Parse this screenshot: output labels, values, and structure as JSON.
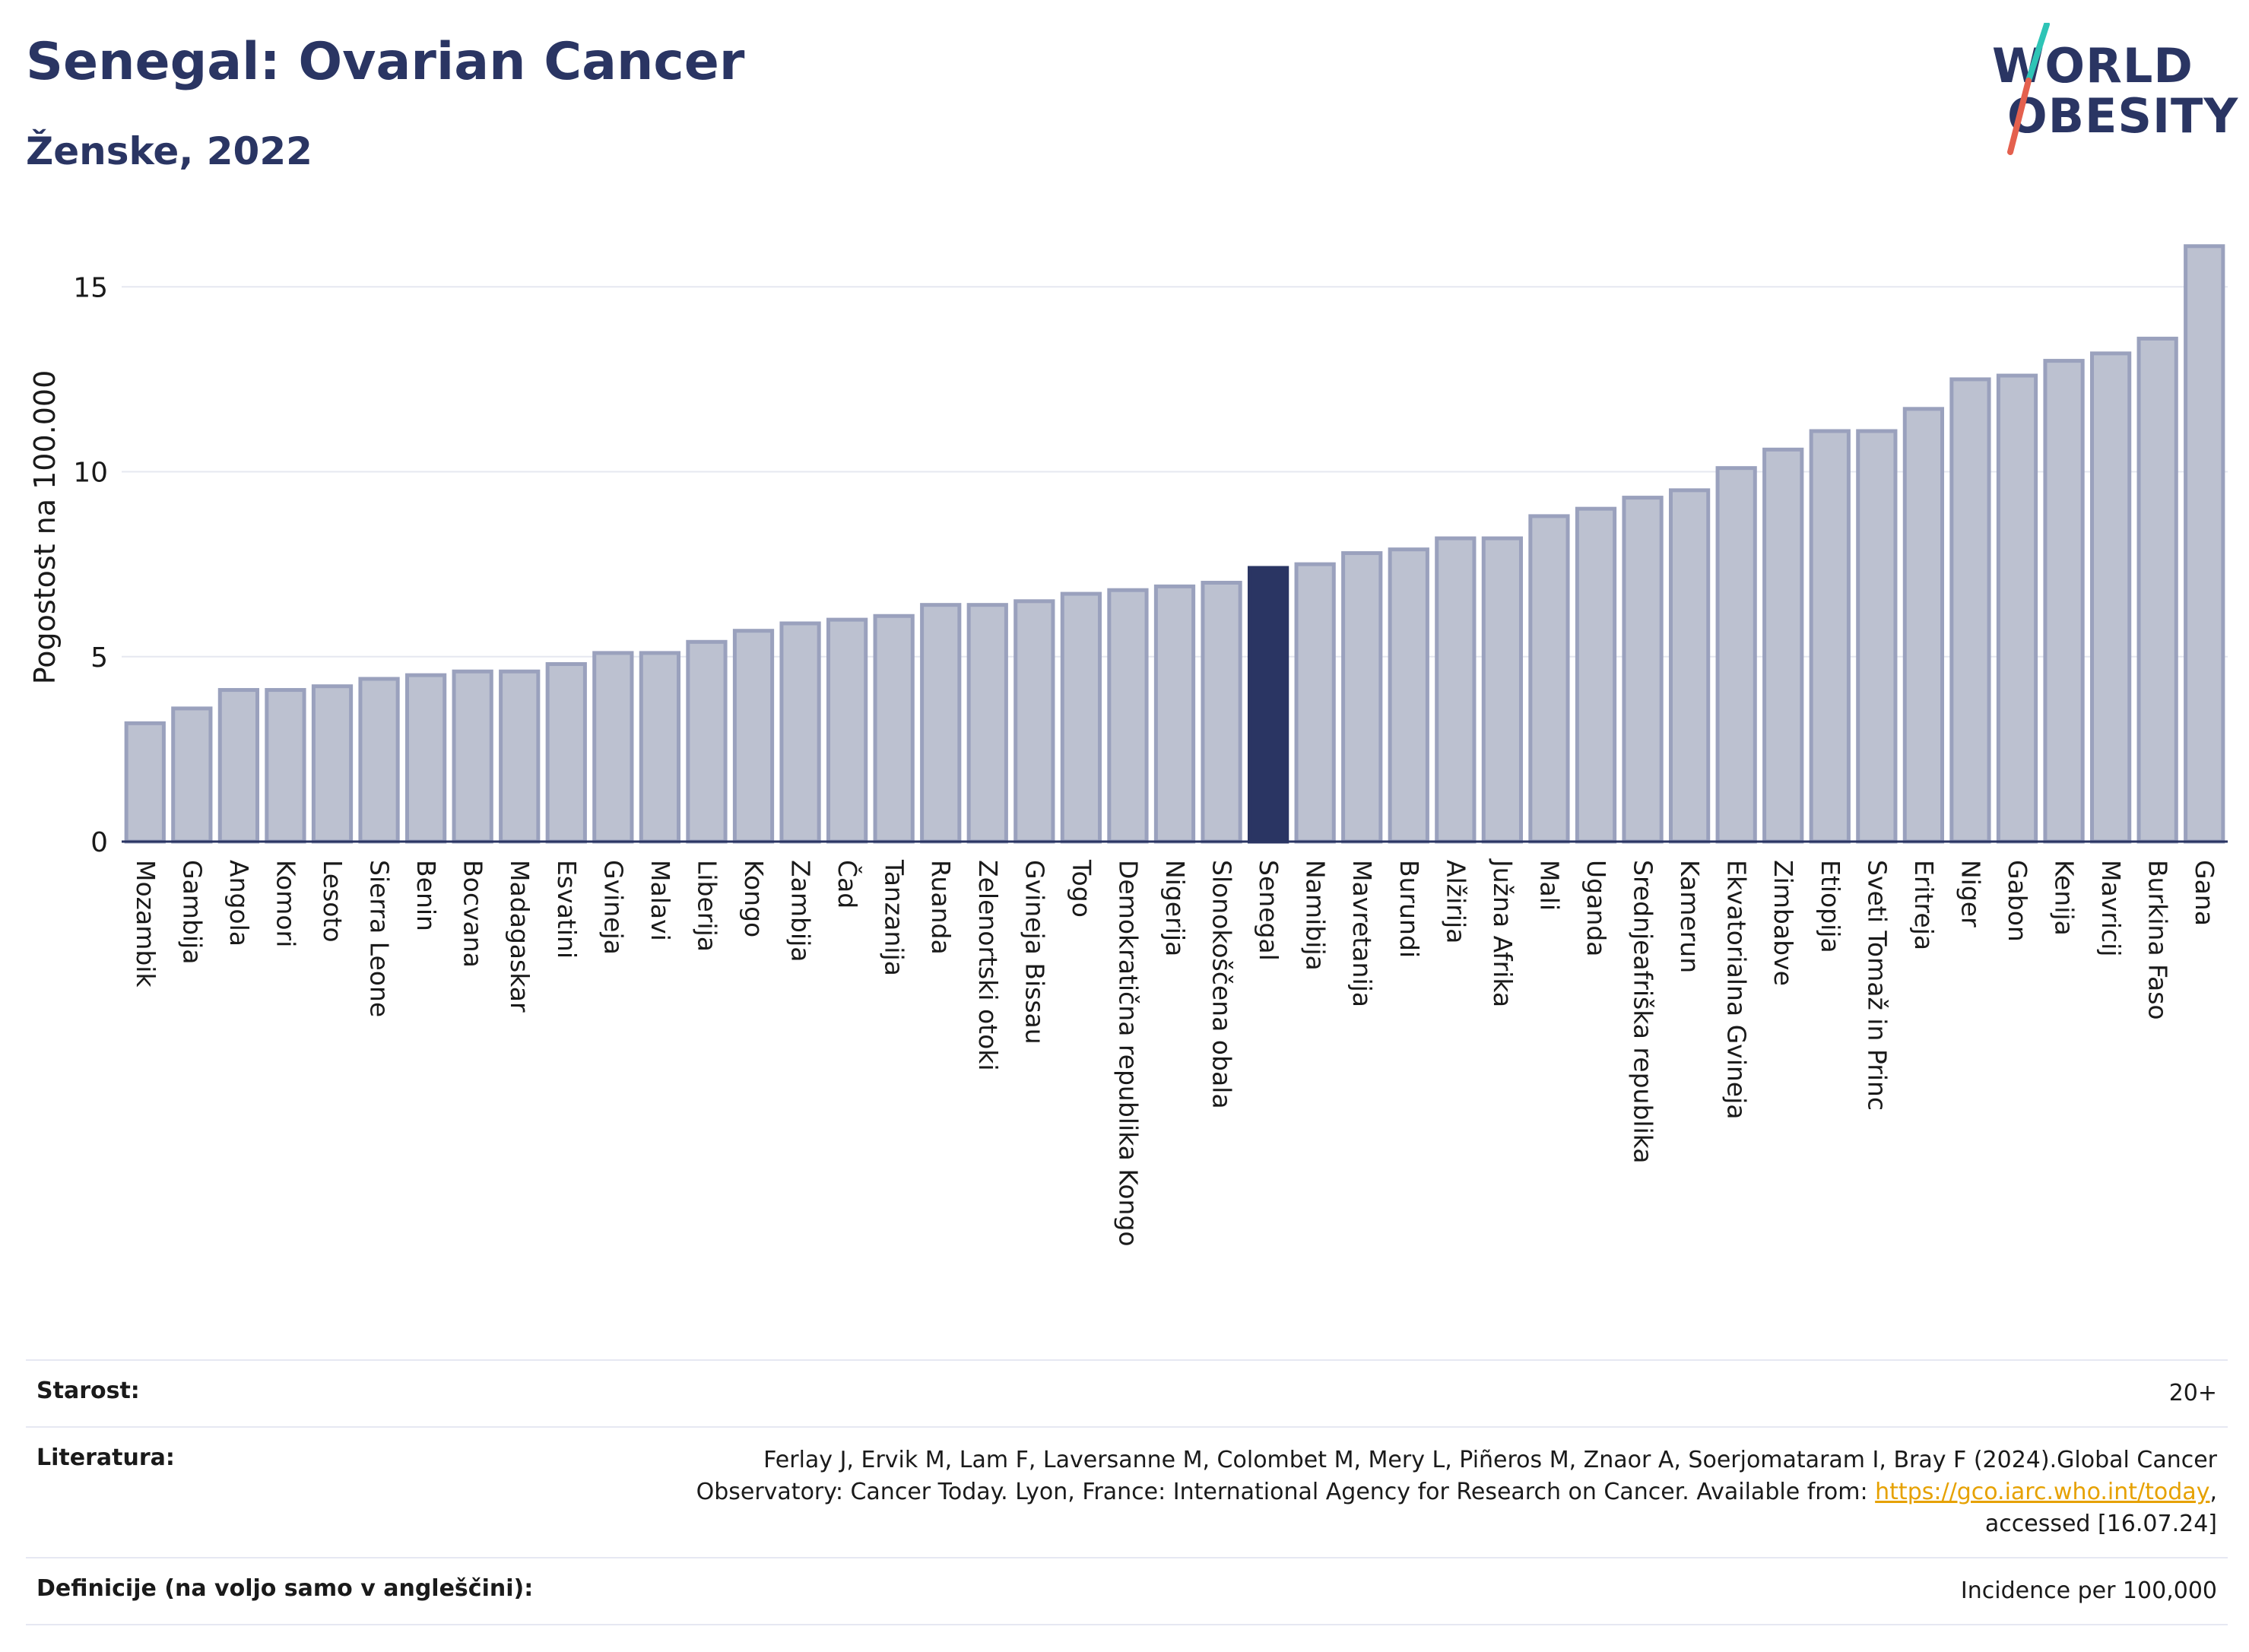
{
  "header": {
    "title": "Senegal: Ovarian Cancer",
    "subtitle": "Ženske, 2022"
  },
  "logo": {
    "line1": "WORLD",
    "line2": "OBESITY",
    "accent_colors": [
      "#2ec4b6",
      "#e4604e"
    ]
  },
  "colors": {
    "bar": "#bcc1d0",
    "bar_border": "#9aa1bd",
    "highlight": "#2a3563",
    "grid": "#e6e8f0",
    "axis": "#2a3563"
  },
  "chart_data": {
    "type": "bar",
    "ylabel": "Pogostost na 100.000",
    "ylim": [
      0,
      17
    ],
    "yticks": [
      0,
      5,
      10,
      15
    ],
    "grid": true,
    "highlight": "Senegal",
    "categories": [
      "Mozambik",
      "Gambija",
      "Angola",
      "Komori",
      "Lesoto",
      "Sierra Leone",
      "Benin",
      "Bocvana",
      "Madagaskar",
      "Esvatini",
      "Gvineja",
      "Malavi",
      "Liberija",
      "Kongo",
      "Zambija",
      "Čad",
      "Tanzanija",
      "Ruanda",
      "Zelenortski otoki",
      "Gvineja Bissau",
      "Togo",
      "Demokratična republika Kongo",
      "Nigerija",
      "Slonokoščena obala",
      "Senegal",
      "Namibija",
      "Mavretanija",
      "Burundi",
      "Alžirija",
      "Južna Afrika",
      "Mali",
      "Uganda",
      "Srednjeafriška republika",
      "Kamerun",
      "Ekvatorialna Gvineja",
      "Zimbabve",
      "Etiopija",
      "Sveti Tomaž in Princ",
      "Eritreja",
      "Niger",
      "Gabon",
      "Kenija",
      "Mavricij",
      "Burkina Faso",
      "Gana"
    ],
    "values": [
      3.2,
      3.6,
      4.1,
      4.1,
      4.2,
      4.4,
      4.5,
      4.6,
      4.6,
      4.8,
      5.1,
      5.1,
      5.4,
      5.7,
      5.9,
      6.0,
      6.1,
      6.4,
      6.4,
      6.5,
      6.7,
      6.8,
      6.9,
      7.0,
      7.4,
      7.5,
      7.8,
      7.9,
      8.2,
      8.2,
      8.8,
      9.0,
      9.3,
      9.5,
      10.1,
      10.6,
      11.1,
      11.1,
      11.7,
      12.5,
      12.6,
      13.0,
      13.2,
      13.6,
      16.1
    ]
  },
  "info": {
    "age_label": "Starost:",
    "age_value": "20+",
    "lit_label": "Literatura:",
    "lit_text_1": "Ferlay J, Ervik M, Lam F, Laversanne M, Colombet M, Mery L, Piñeros M, Znaor A, Soerjomataram I, Bray F (2024).Global Cancer",
    "lit_text_2": "Observatory: Cancer Today. Lyon, France: International Agency for Research on Cancer. Available from: ",
    "lit_link": "https://gco.iarc.who.int/today",
    "lit_text_3": ",",
    "lit_text_4": "accessed [16.07.24]",
    "def_label": "Definicije (na voljo samo v angleščini):",
    "def_value": "Incidence per 100,000"
  }
}
